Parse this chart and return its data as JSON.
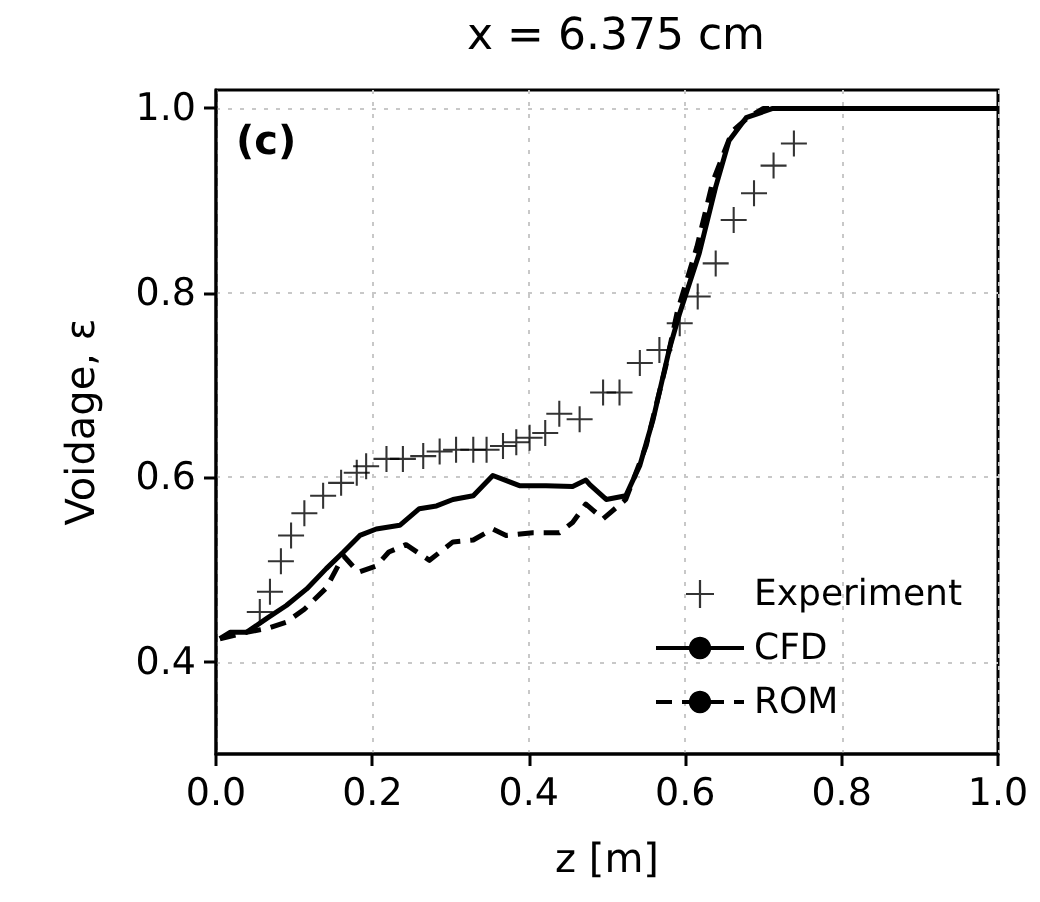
{
  "chart_data": {
    "type": "line",
    "title": "x = 6.375 cm",
    "xlabel": "z [m]",
    "ylabel": "Voidage, ε",
    "annotations": [
      "(c)"
    ],
    "xlim": [
      0,
      1
    ],
    "xticks": [
      {
        "value": 0,
        "label": "0.0"
      },
      0.2,
      0.4,
      0.6,
      0.8,
      {
        "value": 1,
        "label": "1.0"
      }
    ],
    "ylim": [
      0.3,
      1.02
    ],
    "yticks": [
      0.4,
      0.6,
      0.8,
      {
        "value": 1,
        "label": "1.0"
      }
    ],
    "grid": true,
    "legend": "bottom right",
    "series": [
      {
        "name": "Experiment",
        "type": "scatter",
        "marker": "cross",
        "color": "#000000",
        "x": [
          0.056,
          0.069,
          0.083,
          0.096,
          0.113,
          0.137,
          0.16,
          0.18,
          0.192,
          0.218,
          0.239,
          0.265,
          0.286,
          0.307,
          0.329,
          0.346,
          0.367,
          0.384,
          0.401,
          0.421,
          0.439,
          0.465,
          0.495,
          0.516,
          0.542,
          0.567,
          0.593,
          0.616,
          0.639,
          0.662,
          0.688,
          0.713,
          0.739
        ],
        "values": [
          0.454,
          0.476,
          0.509,
          0.537,
          0.561,
          0.58,
          0.594,
          0.605,
          0.612,
          0.62,
          0.62,
          0.623,
          0.628,
          0.63,
          0.63,
          0.63,
          0.634,
          0.638,
          0.643,
          0.648,
          0.669,
          0.663,
          0.692,
          0.692,
          0.724,
          0.738,
          0.767,
          0.796,
          0.832,
          0.879,
          0.908,
          0.938,
          0.962
        ]
      },
      {
        "name": "CFD",
        "type": "line",
        "line_style": "solid",
        "color": "#000000",
        "x": [
          0.005,
          0.018,
          0.039,
          0.065,
          0.09,
          0.116,
          0.141,
          0.163,
          0.184,
          0.205,
          0.235,
          0.26,
          0.282,
          0.303,
          0.329,
          0.354,
          0.388,
          0.422,
          0.456,
          0.473,
          0.478,
          0.499,
          0.524,
          0.542,
          0.559,
          0.58,
          0.593,
          0.618,
          0.639,
          0.656,
          0.678,
          0.712,
          1.0
        ],
        "values": [
          0.425,
          0.432,
          0.432,
          0.447,
          0.461,
          0.479,
          0.501,
          0.519,
          0.537,
          0.544,
          0.548,
          0.566,
          0.569,
          0.576,
          0.58,
          0.602,
          0.591,
          0.591,
          0.59,
          0.597,
          0.592,
          0.576,
          0.58,
          0.613,
          0.663,
          0.74,
          0.778,
          0.843,
          0.915,
          0.965,
          0.99,
          1.0,
          1.0
        ]
      },
      {
        "name": "ROM",
        "type": "line",
        "line_style": "dashed",
        "color": "#000000",
        "x": [
          0.005,
          0.039,
          0.065,
          0.09,
          0.113,
          0.141,
          0.163,
          0.182,
          0.205,
          0.221,
          0.243,
          0.273,
          0.303,
          0.329,
          0.354,
          0.371,
          0.405,
          0.439,
          0.456,
          0.473,
          0.495,
          0.524,
          0.55,
          0.575,
          0.59,
          0.615,
          0.635,
          0.66,
          0.68,
          0.7,
          1.0
        ],
        "values": [
          0.425,
          0.432,
          0.436,
          0.443,
          0.457,
          0.48,
          0.515,
          0.497,
          0.504,
          0.519,
          0.527,
          0.51,
          0.53,
          0.532,
          0.544,
          0.537,
          0.54,
          0.54,
          0.551,
          0.571,
          0.555,
          0.576,
          0.634,
          0.72,
          0.78,
          0.85,
          0.92,
          0.975,
          0.99,
          1.0,
          1.0
        ]
      }
    ]
  }
}
